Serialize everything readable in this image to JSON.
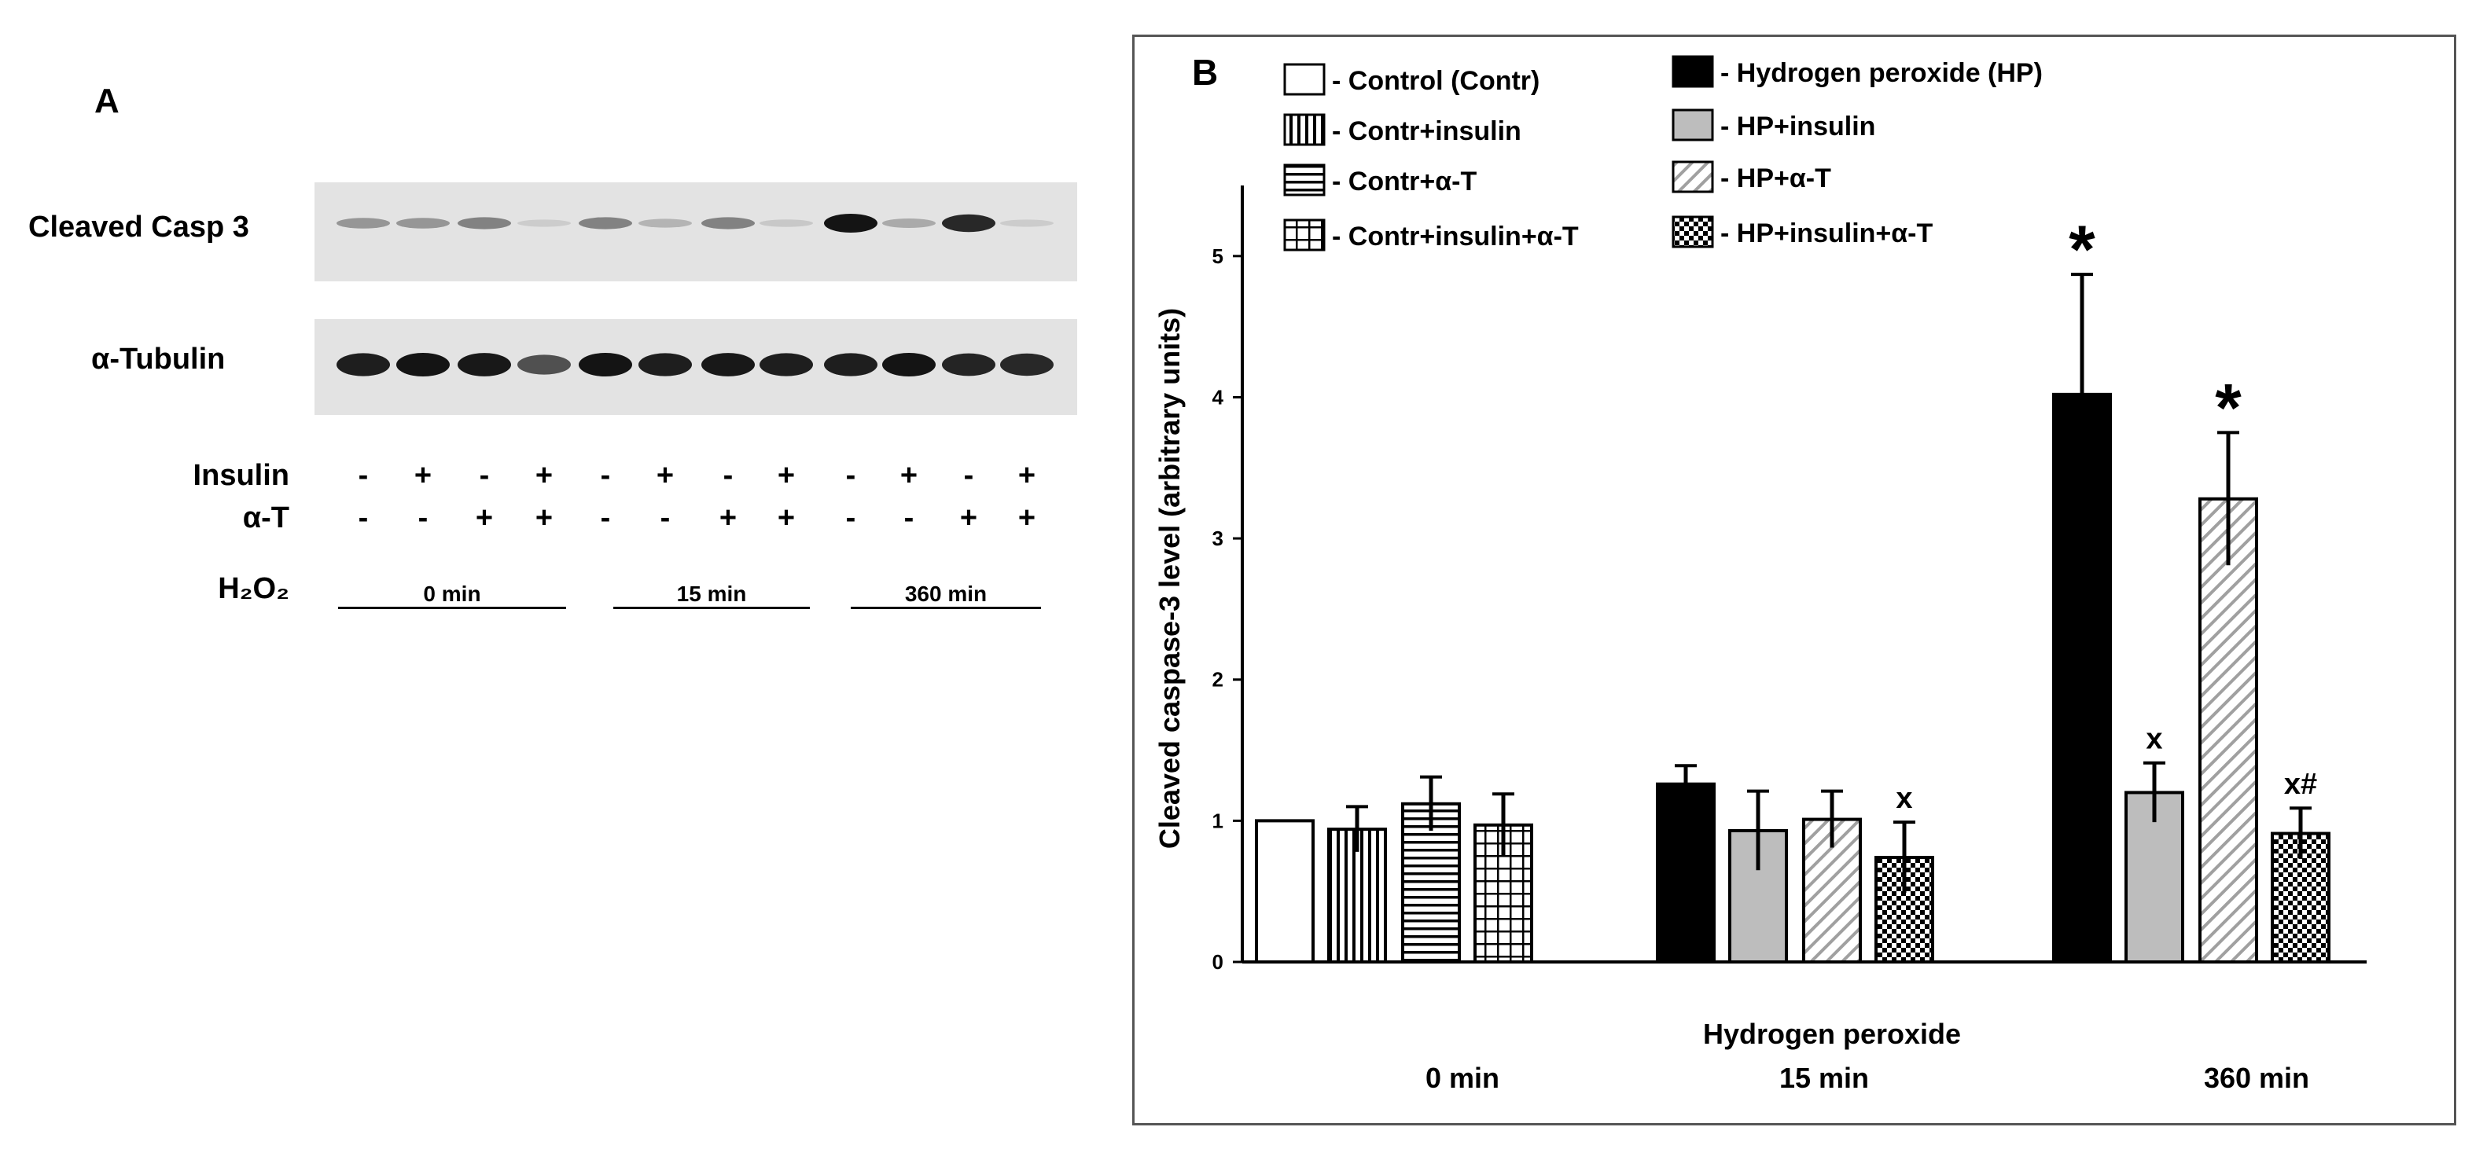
{
  "panel_a": {
    "label": "A",
    "blots": [
      {
        "name": "Cleaved Casp 3",
        "band_intensity": [
          0.35,
          0.35,
          0.45,
          0.08,
          0.45,
          0.2,
          0.45,
          0.1,
          1.0,
          0.25,
          0.9,
          0.08
        ]
      },
      {
        "name": "α-Tubulin",
        "band_intensity": [
          0.95,
          1.0,
          0.98,
          0.7,
          1.0,
          0.95,
          0.98,
          0.95,
          0.95,
          1.0,
          0.92,
          0.9
        ]
      }
    ],
    "insulin_label": "Insulin",
    "insulin_signs": [
      "-",
      "+",
      "-",
      "+",
      "-",
      "+",
      "-",
      "+",
      "-",
      "+",
      "-",
      "+"
    ],
    "at_label": "α-T",
    "at_signs": [
      "-",
      "-",
      "+",
      "+",
      "-",
      "-",
      "+",
      "+",
      "-",
      "-",
      "+",
      "+"
    ],
    "h2o2_label": "H₂O₂",
    "time_groups": [
      "0   min",
      "15  min",
      "360 min"
    ]
  },
  "chart_data": {
    "type": "bar",
    "panel_label": "B",
    "title": "",
    "xlabel": "Hydrogen peroxide",
    "ylabel": "Cleaved caspase-3 level (arbitrary units)",
    "ylim": [
      0,
      5.5
    ],
    "yticks": [
      0,
      1,
      2,
      3,
      4,
      5
    ],
    "grid": false,
    "legend_position": "top",
    "categories": [
      "0 min",
      "15 min",
      "360 min"
    ],
    "series": [
      {
        "name": "- Control (Contr)",
        "pattern": "white",
        "group": "0 min",
        "value": 1.0,
        "error": 0
      },
      {
        "name": "- Contr+insulin",
        "pattern": "vertical",
        "group": "0 min",
        "value": 0.94,
        "error": 0.16
      },
      {
        "name": "- Contr+α-T",
        "pattern": "horizontal",
        "group": "0 min",
        "value": 1.12,
        "error": 0.19
      },
      {
        "name": "- Contr+insulin+α-T",
        "pattern": "grid",
        "group": "0 min",
        "value": 0.97,
        "error": 0.22
      },
      {
        "name": "- Hydrogen peroxide (HP)",
        "pattern": "black",
        "group": "15 min",
        "value": 1.26,
        "error": 0.13
      },
      {
        "name": "- HP+insulin",
        "pattern": "gray",
        "group": "15 min",
        "value": 0.93,
        "error": 0.28
      },
      {
        "name": "- HP+α-T",
        "pattern": "diagonal",
        "group": "15 min",
        "value": 1.01,
        "error": 0.2
      },
      {
        "name": "- HP+insulin+α-T",
        "pattern": "checker",
        "group": "15 min",
        "value": 0.74,
        "error": 0.25,
        "annotation": "x"
      },
      {
        "name": "- Hydrogen peroxide (HP)",
        "pattern": "black",
        "group": "360 min",
        "value": 4.02,
        "error": 0.85,
        "annotation": "*"
      },
      {
        "name": "- HP+insulin",
        "pattern": "gray",
        "group": "360 min",
        "value": 1.2,
        "error": 0.21,
        "annotation": "x"
      },
      {
        "name": "- HP+α-T",
        "pattern": "diagonal",
        "group": "360 min",
        "value": 3.28,
        "error": 0.47,
        "annotation": "*"
      },
      {
        "name": "- HP+insulin+α-T",
        "pattern": "checker",
        "group": "360 min",
        "value": 0.91,
        "error": 0.18,
        "annotation": "x#"
      }
    ],
    "legend": [
      {
        "label": "- Control (Contr)",
        "pattern": "white"
      },
      {
        "label": "- Contr+insulin",
        "pattern": "vertical"
      },
      {
        "label": "- Contr+α-T",
        "pattern": "horizontal"
      },
      {
        "label": "- Contr+insulin+α-T",
        "pattern": "grid"
      },
      {
        "label": "- Hydrogen peroxide (HP)",
        "pattern": "black"
      },
      {
        "label": "- HP+insulin",
        "pattern": "gray"
      },
      {
        "label": "- HP+α-T",
        "pattern": "diagonal"
      },
      {
        "label": "- HP+insulin+α-T",
        "pattern": "checker"
      }
    ],
    "colors": {
      "black": "#000000",
      "gray": "#bdbdbd",
      "white": "#ffffff",
      "axis": "#000000"
    }
  }
}
